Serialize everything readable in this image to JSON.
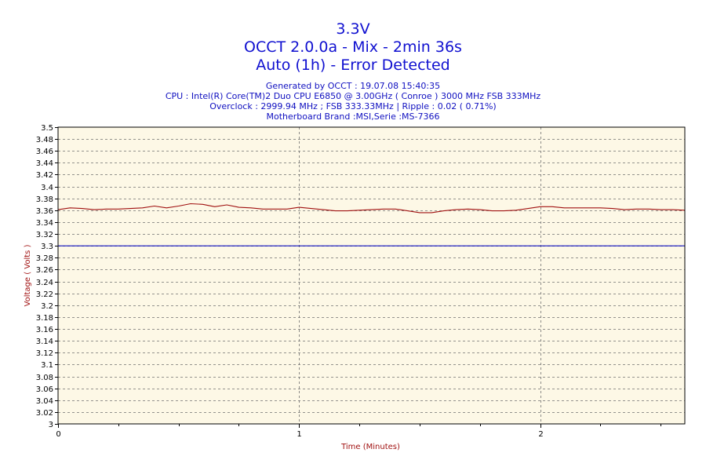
{
  "header": {
    "title_line1": "3.3V",
    "title_line2": "OCCT 2.0.0a - Mix - 2min 36s",
    "title_line3": "Auto (1h) - Error Detected",
    "generated": "Generated by OCCT : 19.07.08 15:40:35",
    "cpu": "CPU : Intel(R) Core(TM)2 Duo CPU E6850 @ 3.00GHz ( Conroe ) 3000 MHz FSB 333MHz",
    "overclock": "Overclock : 2999.94 MHz ; FSB 333.33MHz | Ripple : 0.02 ( 0.71%)",
    "motherboard": "Motherboard Brand :MSI,Serie :MS-7366"
  },
  "colors": {
    "plot_background": "#fdf8e6",
    "grid": "#707070",
    "voltage_line": "#a01010",
    "reference_line": "#1010c0",
    "title_text": "#1010d0",
    "axis_label_text": "#a01010"
  },
  "chart_data": {
    "type": "line",
    "xlabel": "Time (Minutes)",
    "ylabel": "Voltage ( Volts )",
    "xlim": [
      0,
      2.6
    ],
    "ylim": [
      3.0,
      3.5
    ],
    "x_ticks": [
      "0",
      "1",
      "2"
    ],
    "y_ticks": [
      "3.5",
      "3.48",
      "3.46",
      "3.44",
      "3.42",
      "3.4",
      "3.38",
      "3.36",
      "3.34",
      "3.32",
      "3.3",
      "3.28",
      "3.26",
      "3.24",
      "3.22",
      "3.2",
      "3.18",
      "3.16",
      "3.14",
      "3.12",
      "3.1",
      "3.08",
      "3.06",
      "3.04",
      "3.02",
      "3"
    ],
    "grid": true,
    "series": [
      {
        "x": [
          0,
          0.05,
          0.1,
          0.15,
          0.2,
          0.25,
          0.3,
          0.35,
          0.4,
          0.45,
          0.5,
          0.55,
          0.6,
          0.65,
          0.7,
          0.75,
          0.8,
          0.85,
          0.9,
          0.95,
          1.0,
          1.05,
          1.1,
          1.15,
          1.2,
          1.25,
          1.3,
          1.35,
          1.4,
          1.45,
          1.5,
          1.55,
          1.6,
          1.65,
          1.7,
          1.75,
          1.8,
          1.85,
          1.9,
          1.95,
          2.0,
          2.05,
          2.1,
          2.15,
          2.2,
          2.25,
          2.3,
          2.35,
          2.4,
          2.45,
          2.5,
          2.55,
          2.6
        ],
        "values": [
          3.361,
          3.364,
          3.363,
          3.361,
          3.362,
          3.362,
          3.363,
          3.364,
          3.367,
          3.364,
          3.367,
          3.371,
          3.37,
          3.366,
          3.369,
          3.365,
          3.364,
          3.362,
          3.362,
          3.362,
          3.365,
          3.363,
          3.361,
          3.359,
          3.359,
          3.36,
          3.361,
          3.362,
          3.362,
          3.359,
          3.356,
          3.356,
          3.359,
          3.361,
          3.362,
          3.361,
          3.359,
          3.359,
          3.36,
          3.363,
          3.366,
          3.366,
          3.364,
          3.364,
          3.364,
          3.364,
          3.363,
          3.361,
          3.362,
          3.362,
          3.361,
          3.361,
          3.36
        ]
      },
      {
        "x": [
          0,
          2.6
        ],
        "values": [
          3.3,
          3.3
        ]
      }
    ]
  }
}
